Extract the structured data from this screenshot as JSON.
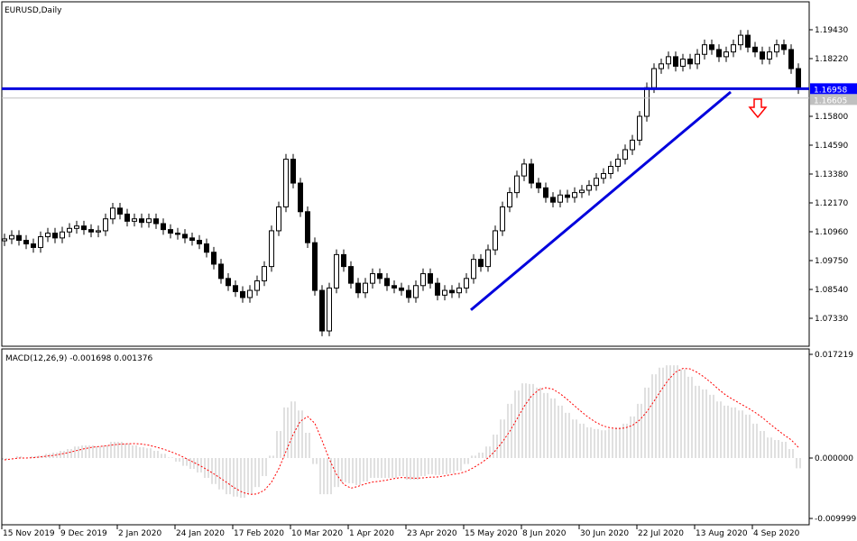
{
  "chart_data": [
    {
      "type": "candlestick",
      "title": "EURUSD,Daily",
      "ylim": [
        1.0665,
        1.206
      ],
      "price_ticks": [
        "1.19430",
        "1.18220",
        "1.15800",
        "1.14590",
        "1.13380",
        "1.12170",
        "1.10960",
        "1.09750",
        "1.08540",
        "1.07330"
      ],
      "bid_label": "1.16958",
      "ask_label": "1.16605",
      "bid": 1.16958,
      "ask": 1.16605,
      "closes": [
        1.1066,
        1.108,
        1.106,
        1.1045,
        1.103,
        1.1075,
        1.109,
        1.107,
        1.1095,
        1.111,
        1.112,
        1.1105,
        1.1095,
        1.11,
        1.115,
        1.1195,
        1.117,
        1.114,
        1.115,
        1.1135,
        1.115,
        1.113,
        1.1105,
        1.109,
        1.1085,
        1.107,
        1.106,
        1.1045,
        1.101,
        1.096,
        1.09,
        1.087,
        1.0845,
        1.082,
        1.085,
        1.089,
        1.095,
        1.11,
        1.12,
        1.14,
        1.13,
        1.118,
        1.105,
        1.085,
        1.068,
        1.086,
        1.1,
        1.095,
        1.088,
        1.084,
        1.088,
        1.092,
        1.09,
        1.087,
        1.086,
        1.085,
        1.082,
        1.087,
        1.092,
        1.088,
        1.083,
        1.085,
        1.084,
        1.086,
        1.09,
        1.098,
        1.095,
        1.102,
        1.11,
        1.12,
        1.126,
        1.133,
        1.138,
        1.13,
        1.128,
        1.124,
        1.122,
        1.125,
        1.124,
        1.126,
        1.127,
        1.129,
        1.132,
        1.134,
        1.137,
        1.14,
        1.144,
        1.148,
        1.158,
        1.17,
        1.178,
        1.18,
        1.183,
        1.179,
        1.182,
        1.18,
        1.184,
        1.188,
        1.186,
        1.183,
        1.185,
        1.188,
        1.192,
        1.187,
        1.185,
        1.182,
        1.185,
        1.188,
        1.186,
        1.178,
        1.1696
      ],
      "annotations": {
        "horizontal_level": 1.16958,
        "trendline": {
          "from_price": 1.0768,
          "to_price": 1.1682
        },
        "arrow": "down",
        "colors": {
          "level": "#0000dd",
          "trendline": "#0000dd",
          "arrow": "#ff0000"
        }
      }
    },
    {
      "type": "bar+line",
      "title": "MACD(12,26,9) -0.001698 0.001376",
      "ylim": [
        -0.009999,
        0.017219
      ],
      "ticks": [
        "0.017219",
        "0.000000",
        "-0.009999"
      ],
      "histogram": [
        -0.0003,
        0,
        0.0003,
        0,
        0.0003,
        0.0004,
        0.0007,
        0.0009,
        0.0012,
        0.0015,
        0.0019,
        0.0021,
        0.0021,
        0.0019,
        0.0021,
        0.0027,
        0.0027,
        0.0024,
        0.0021,
        0.0018,
        0.0016,
        0.0012,
        0.0007,
        0.0001,
        -0.0006,
        -0.0013,
        -0.0018,
        -0.0024,
        -0.0033,
        -0.0043,
        -0.0052,
        -0.006,
        -0.0064,
        -0.0066,
        -0.006,
        -0.0048,
        -0.003,
        0.0004,
        0.0045,
        0.0084,
        0.0094,
        0.0079,
        0.0042,
        -0.001,
        -0.006,
        -0.006,
        -0.0048,
        -0.004,
        -0.0042,
        -0.0045,
        -0.0039,
        -0.0033,
        -0.0033,
        -0.0033,
        -0.0033,
        -0.003,
        -0.0036,
        -0.0036,
        -0.003,
        -0.0027,
        -0.0028,
        -0.0027,
        -0.0025,
        -0.0021,
        -0.001,
        0.0004,
        0.0009,
        0.0019,
        0.0039,
        0.0064,
        0.009,
        0.0112,
        0.0124,
        0.0123,
        0.0117,
        0.0108,
        0.0099,
        0.0087,
        0.0075,
        0.0064,
        0.0057,
        0.0051,
        0.0048,
        0.0046,
        0.0048,
        0.0051,
        0.0057,
        0.0069,
        0.009,
        0.0117,
        0.0139,
        0.015,
        0.0154,
        0.0154,
        0.0147,
        0.0135,
        0.012,
        0.0114,
        0.0105,
        0.0094,
        0.0087,
        0.0084,
        0.0079,
        0.0072,
        0.0057,
        0.0045,
        0.0034,
        0.003,
        0.0027,
        0.0015,
        -0.0017
      ],
      "colors": {
        "histogram": "#c0c0c0",
        "signal": "#ff0000"
      }
    }
  ],
  "x_axis": {
    "tick_labels": [
      "15 Nov 2019",
      "9 Dec 2019",
      "2 Jan 2020",
      "24 Jan 2020",
      "17 Feb 2020",
      "10 Mar 2020",
      "1 Apr 2020",
      "23 Apr 2020",
      "15 May 2020",
      "8 Jun 2020",
      "30 Jun 2020",
      "22 Jul 2020",
      "13 Aug 2020",
      "4 Sep 2020"
    ]
  }
}
